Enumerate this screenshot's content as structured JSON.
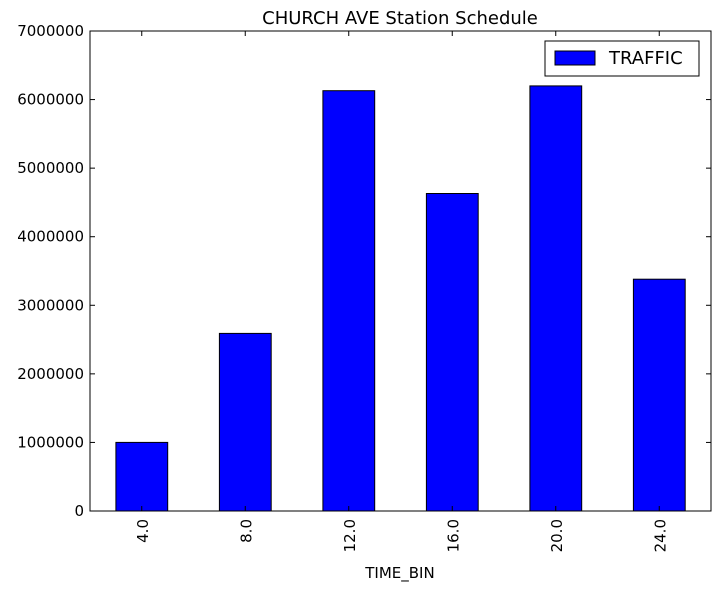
{
  "chart_data": {
    "type": "bar",
    "title": "CHURCH AVE Station Schedule",
    "xlabel": "TIME_BIN",
    "ylabel": "",
    "categories": [
      "4.0",
      "8.0",
      "12.0",
      "16.0",
      "20.0",
      "24.0"
    ],
    "series": [
      {
        "name": "TRAFFIC",
        "color": "#0000ff",
        "values": [
          1000000,
          2590000,
          6130000,
          4630000,
          6200000,
          3380000
        ]
      }
    ],
    "ylim": [
      0,
      7000000
    ],
    "yticks": [
      "0",
      "1000000",
      "2000000",
      "3000000",
      "4000000",
      "5000000",
      "6000000",
      "7000000"
    ],
    "grid": false,
    "legend_position": "top-right"
  }
}
